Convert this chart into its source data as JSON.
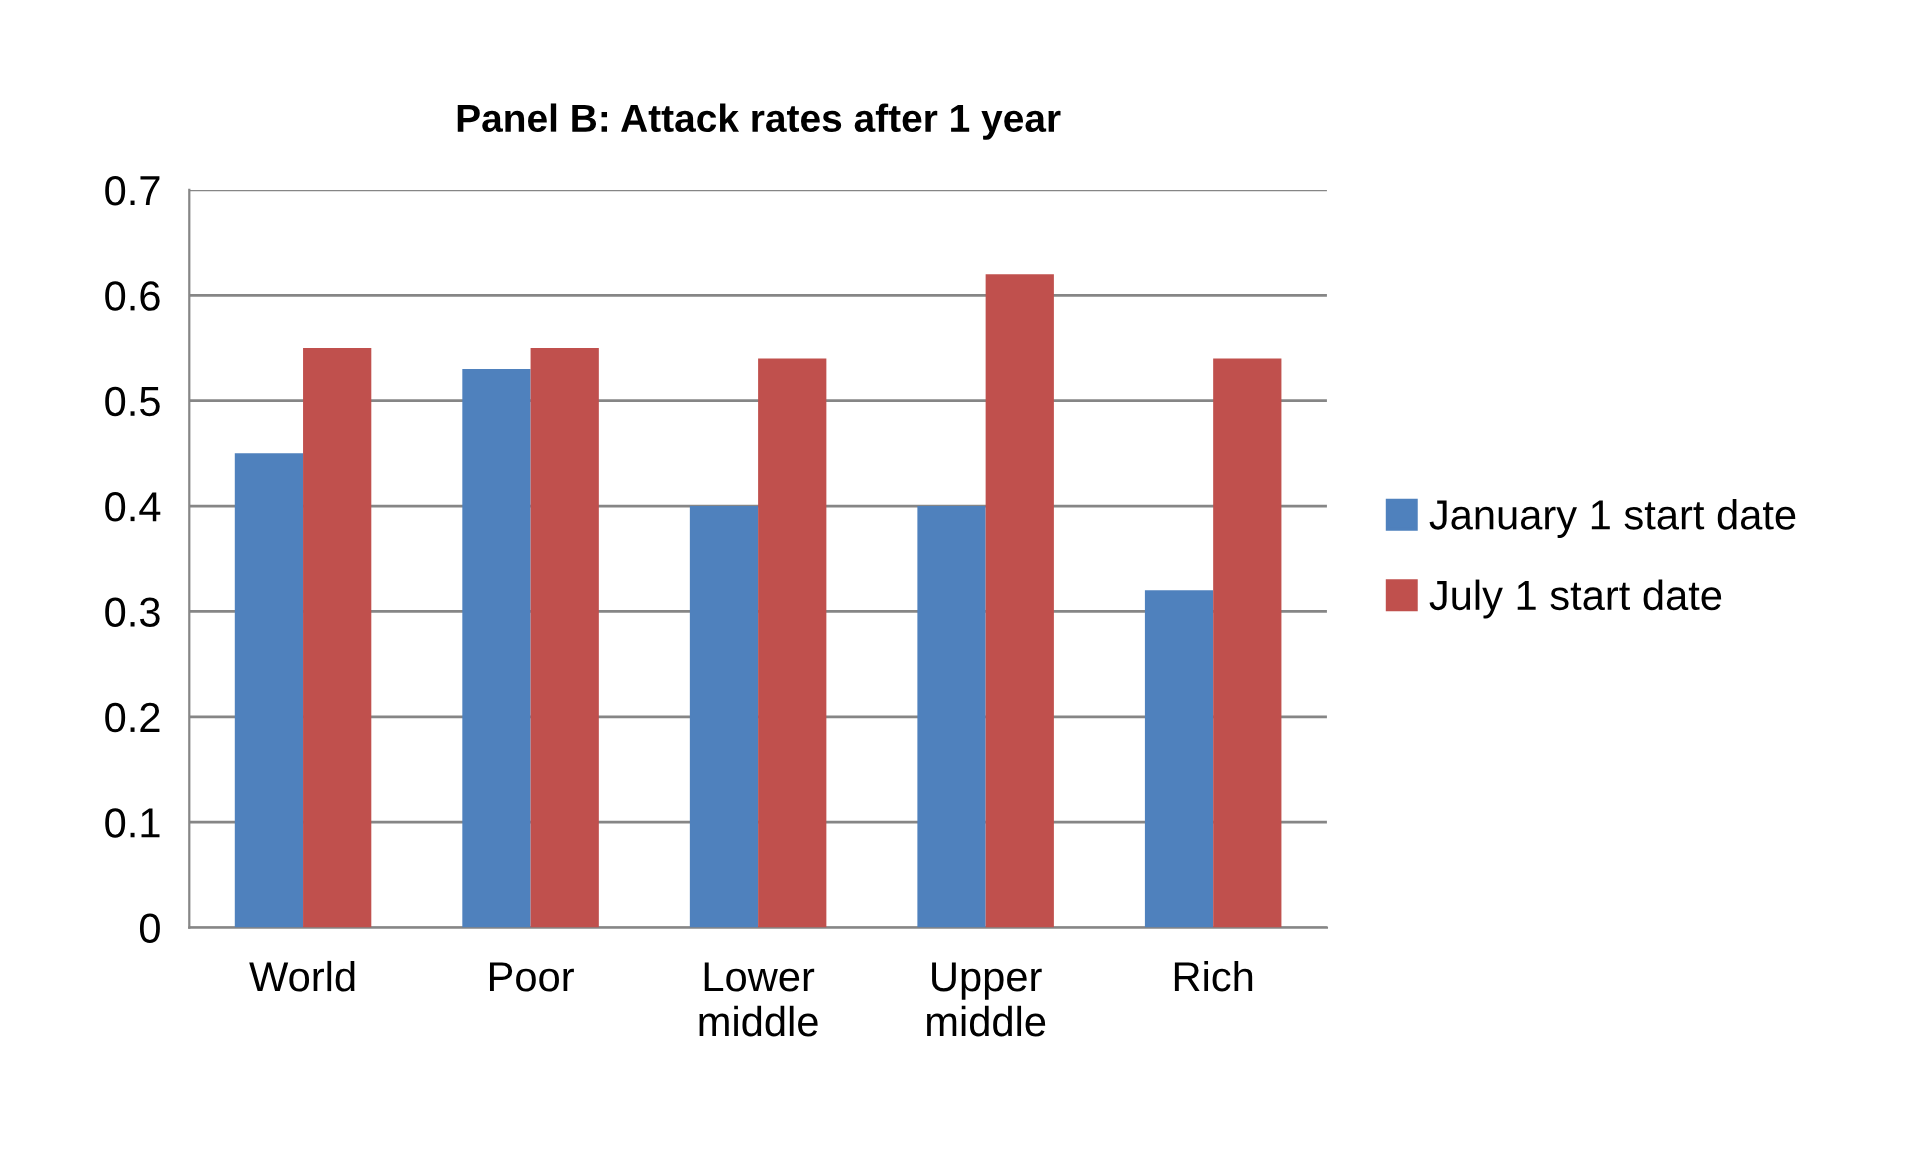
{
  "chart_data": {
    "type": "bar",
    "title": "Panel B: Attack rates after 1 year",
    "categories": [
      "World",
      "Poor",
      "Lower\nmiddle",
      "Upper\nmiddle",
      "Rich"
    ],
    "series": [
      {
        "name": "January 1 start date",
        "color": "#4f81bd",
        "values": [
          0.45,
          0.53,
          0.4,
          0.4,
          0.32
        ]
      },
      {
        "name": "July 1 start date",
        "color": "#c0504d",
        "values": [
          0.55,
          0.55,
          0.54,
          0.62,
          0.54
        ]
      }
    ],
    "ylim": [
      0,
      0.7
    ],
    "yticks": [
      {
        "value": 0,
        "label": "0"
      },
      0.1,
      0.2,
      0.3,
      0.4,
      0.5,
      0.6,
      0.7
    ],
    "grid": "y",
    "legend": "right"
  }
}
